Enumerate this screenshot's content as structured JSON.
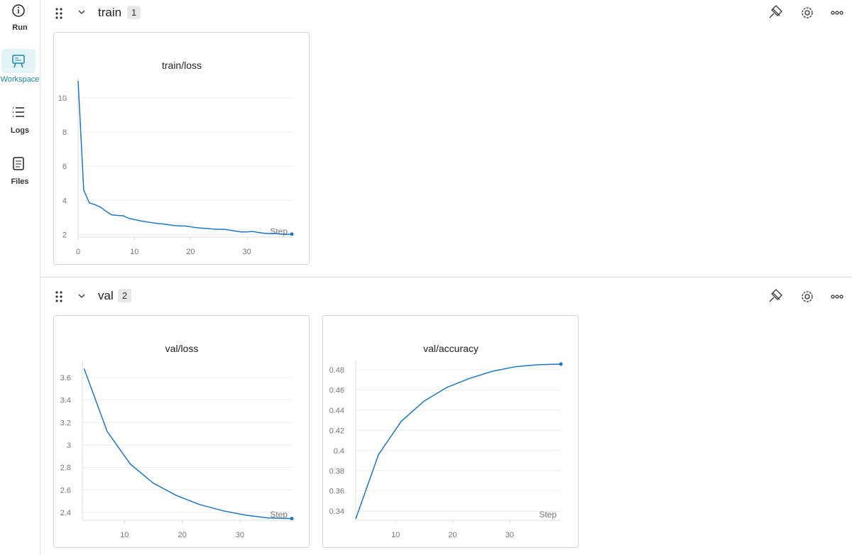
{
  "sidebar": [
    {
      "label": "Run"
    },
    {
      "label": "Workspace"
    },
    {
      "label": "Logs"
    },
    {
      "label": "Files"
    }
  ],
  "sections": [
    {
      "title": "train",
      "count": 1,
      "panels": [
        {
          "type": "line",
          "title": "train/loss",
          "x_label": "Step",
          "color": "#1f77c4",
          "x": [
            0,
            1,
            2,
            3,
            4,
            5,
            6,
            7,
            8,
            9,
            10,
            11,
            12,
            13,
            14,
            15,
            16,
            17,
            18,
            19,
            20,
            21,
            22,
            23,
            24,
            25,
            26,
            27,
            28,
            29,
            30,
            31,
            32,
            33,
            34,
            35,
            36,
            37,
            38
          ],
          "values": [
            11.0,
            4.6,
            3.85,
            3.75,
            3.6,
            3.35,
            3.15,
            3.12,
            3.1,
            2.95,
            2.88,
            2.8,
            2.75,
            2.7,
            2.65,
            2.62,
            2.58,
            2.53,
            2.5,
            2.5,
            2.45,
            2.4,
            2.37,
            2.35,
            2.32,
            2.3,
            2.3,
            2.25,
            2.2,
            2.15,
            2.15,
            2.18,
            2.12,
            2.08,
            2.05,
            2.07,
            2.02,
            2.0,
            2.02
          ],
          "xlim": [
            0,
            38
          ],
          "ylim": [
            1.85,
            11.0
          ],
          "xticks": [
            0,
            10,
            20,
            30
          ],
          "yticks": [
            2,
            4,
            6,
            8,
            10
          ],
          "grid": true
        }
      ]
    },
    {
      "title": "val",
      "count": 2,
      "panels": [
        {
          "type": "line",
          "title": "val/loss",
          "x_label": "Step",
          "color": "#1f77c4",
          "x": [
            3,
            7,
            11,
            15,
            19,
            23,
            27,
            31,
            35,
            39
          ],
          "values": [
            3.68,
            3.12,
            2.83,
            2.66,
            2.55,
            2.47,
            2.415,
            2.375,
            2.35,
            2.345
          ],
          "xlim": [
            2.7,
            39
          ],
          "ylim": [
            2.33,
            3.72
          ],
          "xticks": [
            10,
            20,
            30
          ],
          "yticks": [
            2.4,
            2.6,
            2.8,
            3,
            3.2,
            3.4,
            3.6
          ],
          "grid": true
        },
        {
          "type": "line",
          "title": "val/accuracy",
          "x_label": "Step",
          "color": "#1f77c4",
          "x": [
            3,
            7,
            11,
            15,
            19,
            23,
            27,
            31,
            35,
            39
          ],
          "values": [
            0.3323,
            0.396,
            0.429,
            0.449,
            0.4625,
            0.4715,
            0.4785,
            0.483,
            0.485,
            0.4856
          ],
          "xlim": [
            3,
            39
          ],
          "ylim": [
            0.331,
            0.4856
          ],
          "xticks": [
            10,
            20,
            30
          ],
          "yticks": [
            0.34,
            0.36,
            0.38,
            0.4,
            0.42,
            0.44,
            0.46,
            0.48
          ],
          "grid": true
        }
      ]
    }
  ]
}
